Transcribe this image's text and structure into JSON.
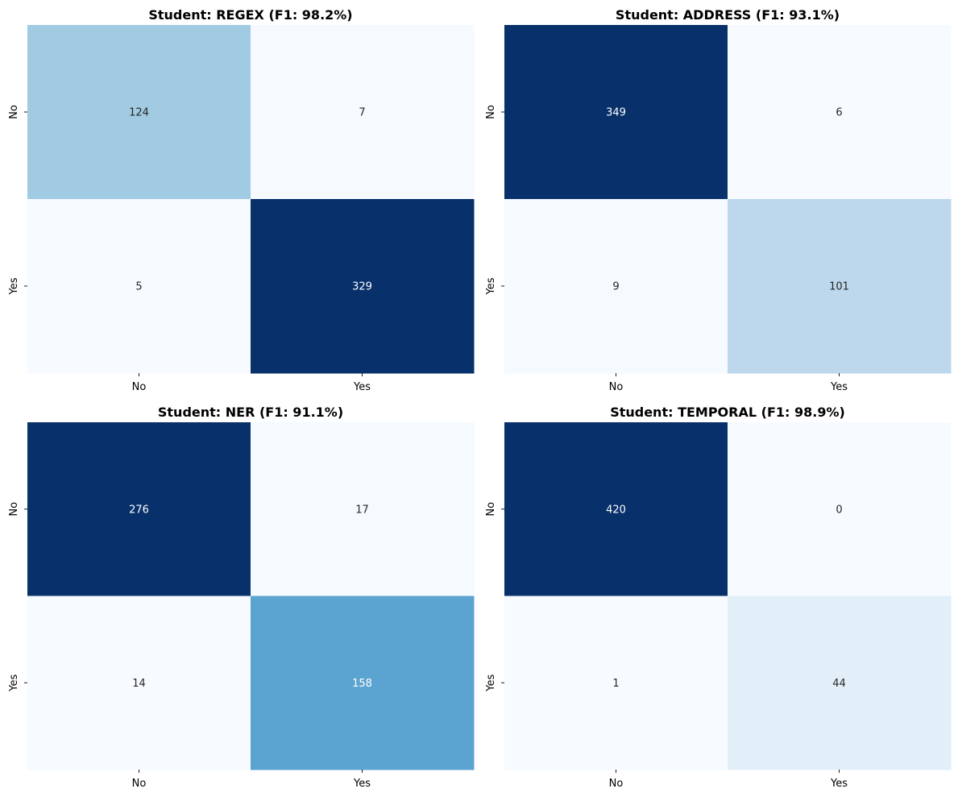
{
  "chart_data": [
    {
      "type": "heatmap",
      "title": "Student: REGEX (F1: 98.2%)",
      "row_labels": [
        "No",
        "Yes"
      ],
      "col_labels": [
        "No",
        "Yes"
      ],
      "values": [
        [
          124,
          7
        ],
        [
          5,
          329
        ]
      ],
      "colormap": "Blues",
      "colorbar": false
    },
    {
      "type": "heatmap",
      "title": "Student: ADDRESS (F1: 93.1%)",
      "row_labels": [
        "No",
        "Yes"
      ],
      "col_labels": [
        "No",
        "Yes"
      ],
      "values": [
        [
          349,
          6
        ],
        [
          9,
          101
        ]
      ],
      "colormap": "Blues",
      "colorbar": false
    },
    {
      "type": "heatmap",
      "title": "Student: NER (F1: 91.1%)",
      "row_labels": [
        "No",
        "Yes"
      ],
      "col_labels": [
        "No",
        "Yes"
      ],
      "values": [
        [
          276,
          17
        ],
        [
          14,
          158
        ]
      ],
      "colormap": "Blues",
      "colorbar": false
    },
    {
      "type": "heatmap",
      "title": "Student: TEMPORAL (F1: 98.9%)",
      "row_labels": [
        "No",
        "Yes"
      ],
      "col_labels": [
        "No",
        "Yes"
      ],
      "values": [
        [
          420,
          0
        ],
        [
          1,
          44
        ]
      ],
      "colormap": "Blues",
      "colorbar": false
    }
  ]
}
